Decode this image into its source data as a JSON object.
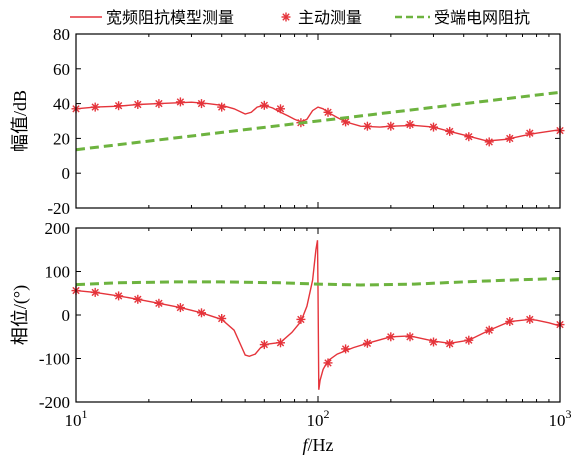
{
  "legend": [
    {
      "label": "宽频阻抗模型测量",
      "color": "#e5343b",
      "style": "solid"
    },
    {
      "label": "主动测量",
      "color": "#e5343b",
      "style": "marker"
    },
    {
      "label": "受端电网阻抗",
      "color": "#6db33f",
      "style": "dashed"
    }
  ],
  "xlabel_italic": "f",
  "xlabel_rest": "/Hz",
  "chart_data": [
    {
      "type": "line",
      "ylabel": "幅值/dB",
      "xscale": "log",
      "xlim": [
        10,
        1000
      ],
      "ylim": [
        -20,
        80
      ],
      "yticks": [
        "-20",
        "0",
        "20",
        "40",
        "60",
        "80"
      ],
      "series": [
        {
          "name": "宽频阻抗模型测量",
          "x": [
            10,
            12,
            15,
            18,
            22,
            27,
            30,
            35,
            40,
            45,
            50,
            53,
            56,
            60,
            65,
            70,
            75,
            80,
            85,
            90,
            95,
            100,
            105,
            110,
            120,
            130,
            150,
            180,
            200,
            250,
            300,
            350,
            400,
            500,
            600,
            700,
            800,
            1000
          ],
          "y": [
            37,
            38,
            38.5,
            39.5,
            40,
            40.5,
            40.8,
            40,
            39,
            37,
            34,
            35,
            38,
            39,
            37.5,
            35,
            33,
            31,
            29.5,
            31,
            36,
            38,
            37,
            35,
            32,
            29.5,
            27,
            26.5,
            27,
            27.5,
            26.5,
            24,
            22,
            18.5,
            19.5,
            21.5,
            23,
            25
          ]
        },
        {
          "name": "主动测量",
          "x": [
            10,
            12,
            15,
            18,
            22,
            27,
            33,
            40,
            60,
            70,
            85,
            110,
            130,
            160,
            200,
            240,
            300,
            350,
            420,
            510,
            620,
            750,
            1000
          ],
          "y": [
            37,
            38,
            38.8,
            39.5,
            40,
            41,
            40,
            38,
            39,
            37,
            29,
            35,
            29.5,
            27,
            27,
            28,
            26.5,
            24,
            21,
            18,
            20,
            23,
            24.5
          ]
        },
        {
          "name": "受端电网阻抗",
          "x": [
            10,
            1000
          ],
          "y": [
            13.5,
            46.5
          ]
        }
      ]
    },
    {
      "type": "line",
      "ylabel": "相位/(°)",
      "xscale": "log",
      "xlim": [
        10,
        1000
      ],
      "ylim": [
        -200,
        200
      ],
      "yticks": [
        "-200",
        "-100",
        "0",
        "100",
        "200"
      ],
      "xticks": [
        {
          "base": "10",
          "exp": "1"
        },
        {
          "base": "10",
          "exp": "2"
        },
        {
          "base": "10",
          "exp": "3"
        }
      ],
      "series": [
        {
          "name": "宽频阻抗模型测量",
          "x": [
            10,
            12,
            15,
            18,
            22,
            27,
            33,
            40,
            45,
            48,
            50,
            52,
            55,
            58,
            62,
            70,
            78,
            85,
            90,
            95,
            98,
            99.5,
            100,
            100.8,
            102,
            105,
            110,
            120,
            140,
            160,
            200,
            240,
            300,
            350,
            420,
            510,
            620,
            750,
            800,
            900,
            1000
          ],
          "y": [
            56,
            52,
            44,
            36,
            27,
            17,
            5,
            -10,
            -35,
            -70,
            -92,
            -95,
            -90,
            -75,
            -67,
            -63,
            -40,
            -15,
            20,
            80,
            150,
            172,
            60,
            -172,
            -150,
            -125,
            -105,
            -90,
            -75,
            -65,
            -50,
            -48,
            -60,
            -65,
            -58,
            -35,
            -15,
            -10,
            -12,
            -18,
            -25
          ]
        },
        {
          "name": "主动测量",
          "x": [
            10,
            12,
            15,
            18,
            22,
            27,
            33,
            40,
            60,
            70,
            85,
            110,
            130,
            160,
            200,
            240,
            300,
            350,
            420,
            510,
            620,
            750,
            1000
          ],
          "y": [
            56,
            52,
            44,
            36,
            27,
            17,
            5,
            -8,
            -68,
            -64,
            -10,
            -110,
            -78,
            -65,
            -50,
            -50,
            -62,
            -66,
            -58,
            -35,
            -15,
            -10,
            -22
          ]
        },
        {
          "name": "受端电网阻抗",
          "x": [
            10,
            15,
            25,
            40,
            70,
            100,
            150,
            250,
            400,
            600,
            1000
          ],
          "y": [
            70,
            74,
            76,
            76,
            74,
            71,
            69,
            71,
            76,
            80,
            84
          ]
        }
      ]
    }
  ]
}
